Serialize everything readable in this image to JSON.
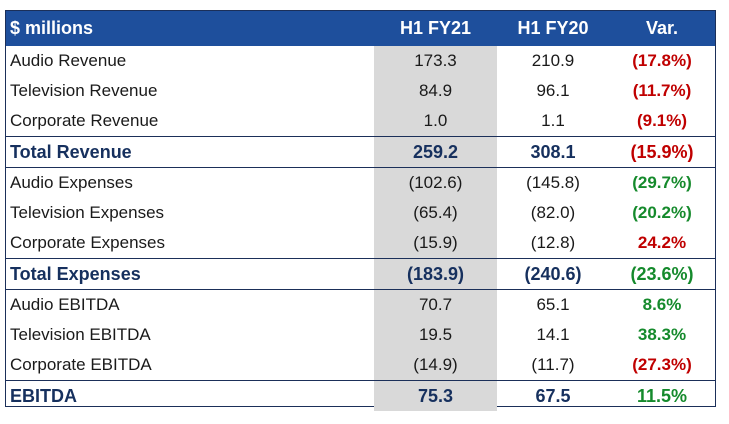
{
  "table": {
    "headers": [
      "$ millions",
      "H1 FY21",
      "H1 FY20",
      "Var."
    ],
    "rows": [
      {
        "label": "Audio Revenue",
        "h1fy21": "173.3",
        "h1fy20": "210.9",
        "var": "(17.8%)",
        "var_color": "red",
        "total": false
      },
      {
        "label": "Television Revenue",
        "h1fy21": "84.9",
        "h1fy20": "96.1",
        "var": "(11.7%)",
        "var_color": "red",
        "total": false
      },
      {
        "label": "Corporate Revenue",
        "h1fy21": "1.0",
        "h1fy20": "1.1",
        "var": "(9.1%)",
        "var_color": "red",
        "total": false
      },
      {
        "label": "Total Revenue",
        "h1fy21": "259.2",
        "h1fy20": "308.1",
        "var": "(15.9%)",
        "var_color": "red",
        "total": true
      },
      {
        "label": "Audio Expenses",
        "h1fy21": "(102.6)",
        "h1fy20": "(145.8)",
        "var": "(29.7%)",
        "var_color": "green",
        "total": false,
        "sep": true
      },
      {
        "label": "Television Expenses",
        "h1fy21": "(65.4)",
        "h1fy20": "(82.0)",
        "var": "(20.2%)",
        "var_color": "green",
        "total": false
      },
      {
        "label": "Corporate Expenses",
        "h1fy21": "(15.9)",
        "h1fy20": "(12.8)",
        "var": "24.2%",
        "var_color": "red",
        "total": false
      },
      {
        "label": "Total Expenses",
        "h1fy21": "(183.9)",
        "h1fy20": "(240.6)",
        "var": "(23.6%)",
        "var_color": "green",
        "total": true
      },
      {
        "label": "Audio EBITDA",
        "h1fy21": "70.7",
        "h1fy20": "65.1",
        "var": "8.6%",
        "var_color": "green",
        "total": false,
        "sep": true
      },
      {
        "label": "Television EBITDA",
        "h1fy21": "19.5",
        "h1fy20": "14.1",
        "var": "38.3%",
        "var_color": "green",
        "total": false
      },
      {
        "label": "Corporate EBITDA",
        "h1fy21": "(14.9)",
        "h1fy20": "(11.7)",
        "var": "(27.3%)",
        "var_color": "red",
        "total": false
      },
      {
        "label": "EBITDA",
        "h1fy21": "75.3",
        "h1fy20": "67.5",
        "var": "11.5%",
        "var_color": "green",
        "total": true
      }
    ]
  },
  "colors": {
    "header_bg": "#1e4f9c",
    "highlight_col": "#d9d9d9",
    "negative": "#c00000",
    "positive": "#158a2c",
    "total_text": "#16305e"
  }
}
